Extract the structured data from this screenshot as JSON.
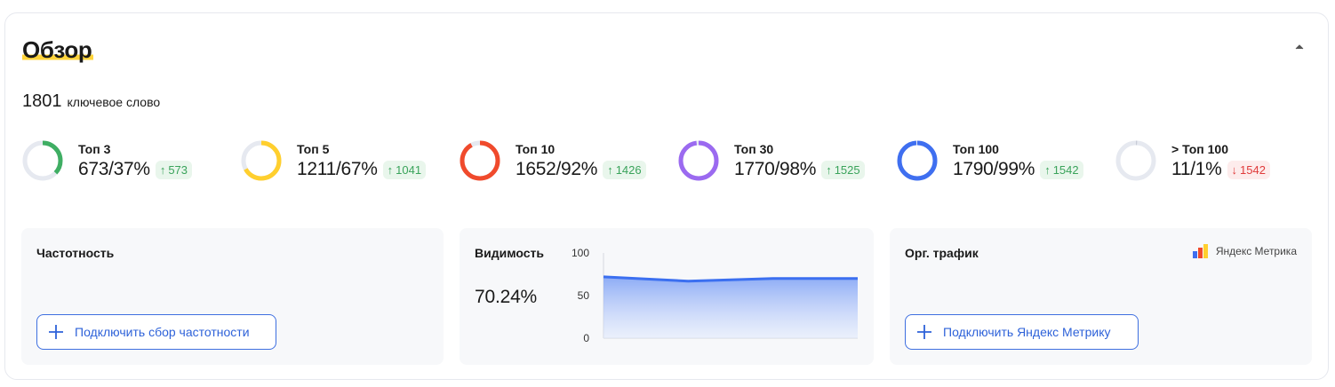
{
  "overview": {
    "title": "Обзор",
    "keywords_count": "1801",
    "keywords_label": "ключевое слово"
  },
  "tops": [
    {
      "name": "Топ 3",
      "value": "673/37%",
      "delta": "573",
      "direction": "up",
      "fraction": 0.37,
      "color": "#3fae63"
    },
    {
      "name": "Топ 5",
      "value": "1211/67%",
      "delta": "1041",
      "direction": "up",
      "fraction": 0.67,
      "color": "#ffcf2e"
    },
    {
      "name": "Топ 10",
      "value": "1652/92%",
      "delta": "1426",
      "direction": "up",
      "fraction": 0.92,
      "color": "#f04a2c"
    },
    {
      "name": "Топ 30",
      "value": "1770/98%",
      "delta": "1525",
      "direction": "up",
      "fraction": 0.98,
      "color": "#9b6af0"
    },
    {
      "name": "Топ 100",
      "value": "1790/99%",
      "delta": "1542",
      "direction": "up",
      "fraction": 0.99,
      "color": "#3f6ff0"
    },
    {
      "name": "> Топ 100",
      "value": "11/1%",
      "delta": "1542",
      "direction": "down",
      "fraction": 0.01,
      "color": "#c7cbd6"
    }
  ],
  "panels": {
    "frequency": {
      "title": "Частотность",
      "button_label": "Подключить сбор частотности"
    },
    "visibility": {
      "title": "Видимость",
      "value": "70.24%"
    },
    "traffic": {
      "title": "Орг. трафик",
      "brand_label": "Яндекс Метрика",
      "button_label": "Подключить Яндекс Метрику"
    }
  },
  "chart_data": {
    "type": "area",
    "title": "",
    "xlabel": "",
    "ylabel": "",
    "ylim": [
      0,
      100
    ],
    "y_ticks": [
      "100",
      "50",
      "0"
    ],
    "x": [
      1,
      2,
      3,
      4
    ],
    "values": [
      72,
      67,
      70,
      70
    ],
    "line_color": "#3b6ff0",
    "grid": false
  },
  "colors": {
    "accent": "#2e62d9",
    "title_underline": "#ffd43b",
    "ring_track": "#e6e9f0"
  }
}
